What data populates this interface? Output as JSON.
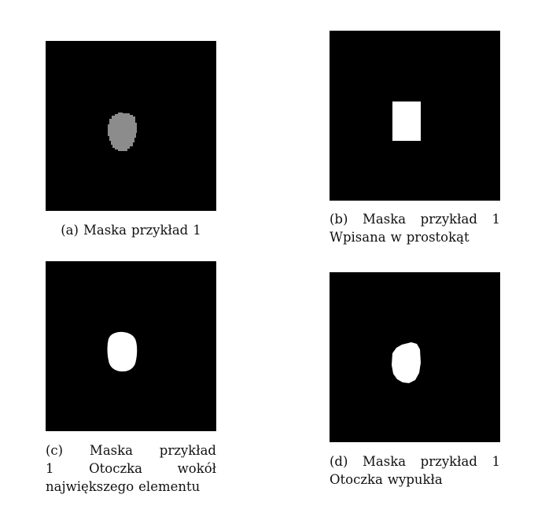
{
  "figures": [
    {
      "id": "a",
      "caption_lines": [
        [
          "(a)",
          "Maska",
          "przykład",
          "1"
        ]
      ],
      "mask": "gray-blob"
    },
    {
      "id": "b",
      "caption_lines": [
        [
          "(b)",
          "Maska",
          "przykład",
          "1"
        ],
        [
          "Wpisana",
          "w",
          "prostokąt"
        ]
      ],
      "mask": "white-rectangle"
    },
    {
      "id": "c",
      "caption_lines": [
        [
          "(c)",
          "Maska",
          "przykład"
        ],
        [
          "1",
          "Otoczka",
          "wokół"
        ],
        [
          "największego",
          "elementu"
        ]
      ],
      "mask": "white-blob"
    },
    {
      "id": "d",
      "caption_lines": [
        [
          "(d)",
          "Maska",
          "przykład",
          "1"
        ],
        [
          "Otoczka",
          "wypukła"
        ]
      ],
      "mask": "white-convex-hull"
    }
  ],
  "colors": {
    "background": "#000000",
    "gray_mask": "#8c8c8c",
    "white_mask": "#ffffff"
  }
}
